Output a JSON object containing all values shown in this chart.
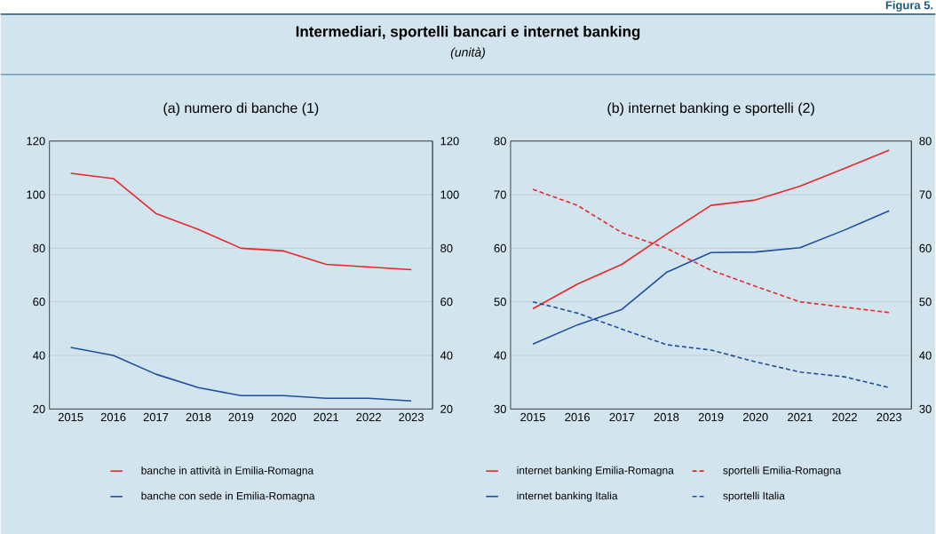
{
  "chart_data": [
    {
      "type": "line",
      "title": "(a) numero di banche (1)",
      "annotations": [
        "Intermediari, sportelli bancari e internet banking",
        "*(unità)*",
        "**Figura 5.**"
      ],
      "categories": [
        "2015",
        "2016",
        "2017",
        "2018",
        "2019",
        "2020",
        "2021",
        "2022",
        "2023"
      ],
      "series": [
        {
          "name": "banche  in  attività  in  Emilia-Romagna",
          "color": "#e8282b",
          "line_style": "solid",
          "values": [
            108,
            106,
            93,
            87,
            80,
            79,
            74,
            73,
            72
          ]
        },
        {
          "name": "banche con sede in Emilia-Romagna",
          "color": "#1f4e9e",
          "line_style": "solid",
          "values": [
            43,
            40,
            33,
            28,
            25,
            25,
            24,
            24,
            23
          ]
        }
      ],
      "ylim": [
        20,
        120
      ],
      "yticks": [
        20,
        40,
        60,
        80,
        100,
        120
      ],
      "y2lim": [
        20,
        120
      ],
      "y2ticks": [
        20,
        40,
        60,
        80,
        100,
        120
      ],
      "grid": "y",
      "legend": "bottom"
    },
    {
      "type": "line",
      "title": "(b) internet banking e sportelli (2)",
      "categories": [
        "2015",
        "2016",
        "2017",
        "2018",
        "2019",
        "2020",
        "2021",
        "2022",
        "2023"
      ],
      "series": [
        {
          "name": "internet banking Emilia-Romagna",
          "color": "#e8282b",
          "line_style": "solid",
          "values": [
            48.7,
            53.3,
            57.0,
            62.6,
            68.0,
            69.0,
            71.6,
            74.9,
            78.3
          ]
        },
        {
          "name": "sportelli Emilia-Romagna",
          "color": "#e8282b",
          "line_style": "dashed",
          "values": [
            71.0,
            68.0,
            62.9,
            60.0,
            55.9,
            52.9,
            50.0,
            49.0,
            48.0
          ]
        },
        {
          "name": "internet banking Italia",
          "color": "#1f4e9e",
          "line_style": "solid",
          "values": [
            42.1,
            45.7,
            48.6,
            55.5,
            59.2,
            59.3,
            60.1,
            63.4,
            67.0
          ]
        },
        {
          "name": "sportelli Italia",
          "color": "#1f4e9e",
          "line_style": "dashed",
          "values": [
            50.0,
            47.9,
            44.9,
            42.0,
            41.0,
            38.8,
            36.9,
            36.0,
            34.0
          ]
        }
      ],
      "ylim": [
        30,
        80
      ],
      "yticks": [
        30,
        40,
        50,
        60,
        70,
        80
      ],
      "y2lim": [
        30,
        80
      ],
      "y2ticks": [
        30,
        40,
        50,
        60,
        70,
        80
      ],
      "grid": "y",
      "legend": "bottom"
    }
  ]
}
